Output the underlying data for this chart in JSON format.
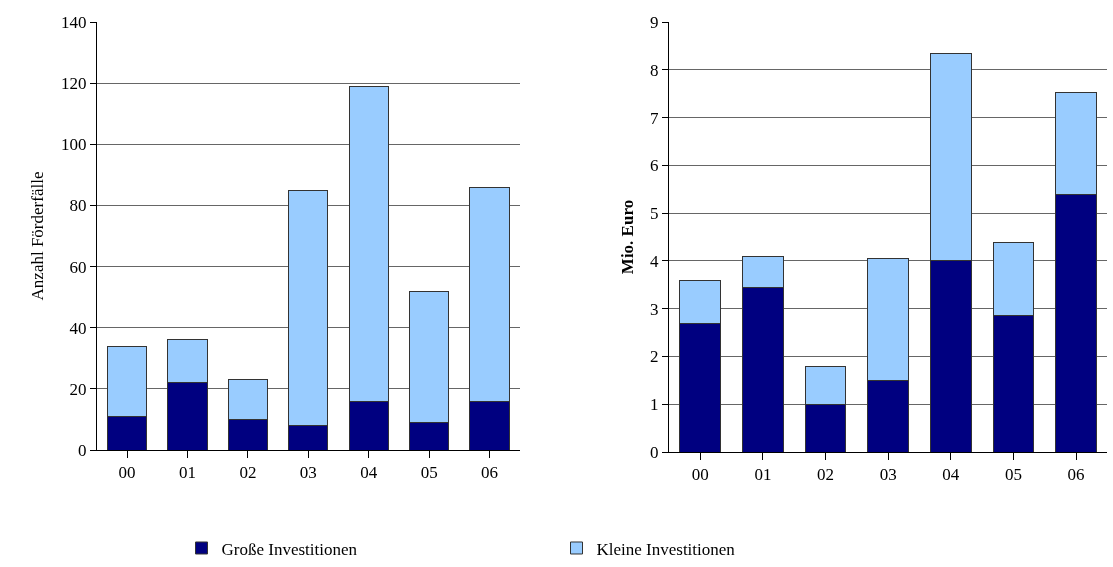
{
  "chart_data": [
    {
      "type": "bar",
      "stacked": true,
      "ylabel": "Anzahl Förderfälle",
      "categories": [
        "00",
        "01",
        "02",
        "03",
        "04",
        "05",
        "06"
      ],
      "series": [
        {
          "name": "Große Investitionen",
          "color": "#000080",
          "values": [
            11,
            22,
            10,
            8,
            16,
            9,
            16
          ]
        },
        {
          "name": "Kleine Investitionen",
          "color": "#99ccff",
          "values": [
            23,
            14,
            13,
            77,
            103,
            43,
            70
          ]
        }
      ],
      "ylim": [
        0,
        140
      ],
      "yticks": [
        0,
        20,
        40,
        60,
        80,
        100,
        120,
        140
      ],
      "grid": "y",
      "legend": "bottom"
    },
    {
      "type": "bar",
      "stacked": true,
      "ylabel": "Mio. Euro",
      "categories": [
        "00",
        "01",
        "02",
        "03",
        "04",
        "05",
        "06"
      ],
      "series": [
        {
          "color": "#000080",
          "values": [
            2.7,
            3.45,
            1.0,
            1.5,
            4.0,
            2.85,
            5.4
          ]
        },
        {
          "color": "#99ccff",
          "values": [
            0.9,
            0.65,
            0.78,
            2.55,
            4.35,
            1.53,
            2.12
          ]
        }
      ],
      "ylim": [
        0,
        9
      ],
      "yticks": [
        0,
        1,
        2,
        3,
        4,
        5,
        6,
        7,
        8,
        9
      ],
      "grid": "y"
    }
  ]
}
